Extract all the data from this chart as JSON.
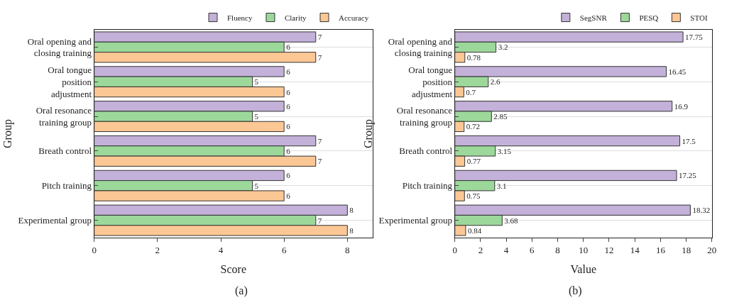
{
  "chart_data": [
    {
      "type": "bar",
      "orientation": "horizontal",
      "categories": [
        "Oral opening and closing training",
        "Oral tongue position adjustment",
        "Oral resonance training group",
        "Breath control",
        "Pitch training",
        "Experimental group"
      ],
      "series": [
        {
          "name": "Fluency",
          "color": "#c3b1d9",
          "values": [
            7,
            6,
            6,
            7,
            6,
            8
          ]
        },
        {
          "name": "Clarity",
          "color": "#9dd89b",
          "values": [
            6,
            5,
            5,
            6,
            5,
            7
          ]
        },
        {
          "name": "Accuracy",
          "color": "#fbc794",
          "values": [
            7,
            6,
            6,
            7,
            6,
            8
          ]
        }
      ],
      "xlabel": "Score",
      "ylabel": "Group",
      "xlim": [
        0,
        8.8
      ],
      "xticks": [
        0,
        2,
        4,
        6,
        8
      ],
      "grid": "y",
      "legend": "top right",
      "data_labels": true,
      "annotations": [
        "(a)"
      ]
    },
    {
      "type": "bar",
      "orientation": "horizontal",
      "categories": [
        "Oral opening and closing training",
        "Oral tongue position adjustment",
        "Oral resonance training group",
        "Breath control",
        "Pitch training",
        "Experimental group"
      ],
      "series": [
        {
          "name": "SegSNR",
          "color": "#c3b1d9",
          "values": [
            17.75,
            16.45,
            16.9,
            17.5,
            17.25,
            18.32
          ]
        },
        {
          "name": "PESQ",
          "color": "#9dd89b",
          "values": [
            3.2,
            2.6,
            2.85,
            3.15,
            3.1,
            3.68
          ]
        },
        {
          "name": "STOI",
          "color": "#fbc794",
          "values": [
            0.78,
            0.7,
            0.72,
            0.77,
            0.75,
            0.84
          ]
        }
      ],
      "xlabel": "Value",
      "ylabel": "Group",
      "xlim": [
        0,
        20
      ],
      "xticks": [
        0,
        2,
        4,
        6,
        8,
        10,
        12,
        14,
        16,
        18,
        20
      ],
      "grid": "y",
      "legend": "top right",
      "data_labels": true,
      "annotations": [
        "(b)"
      ]
    }
  ]
}
